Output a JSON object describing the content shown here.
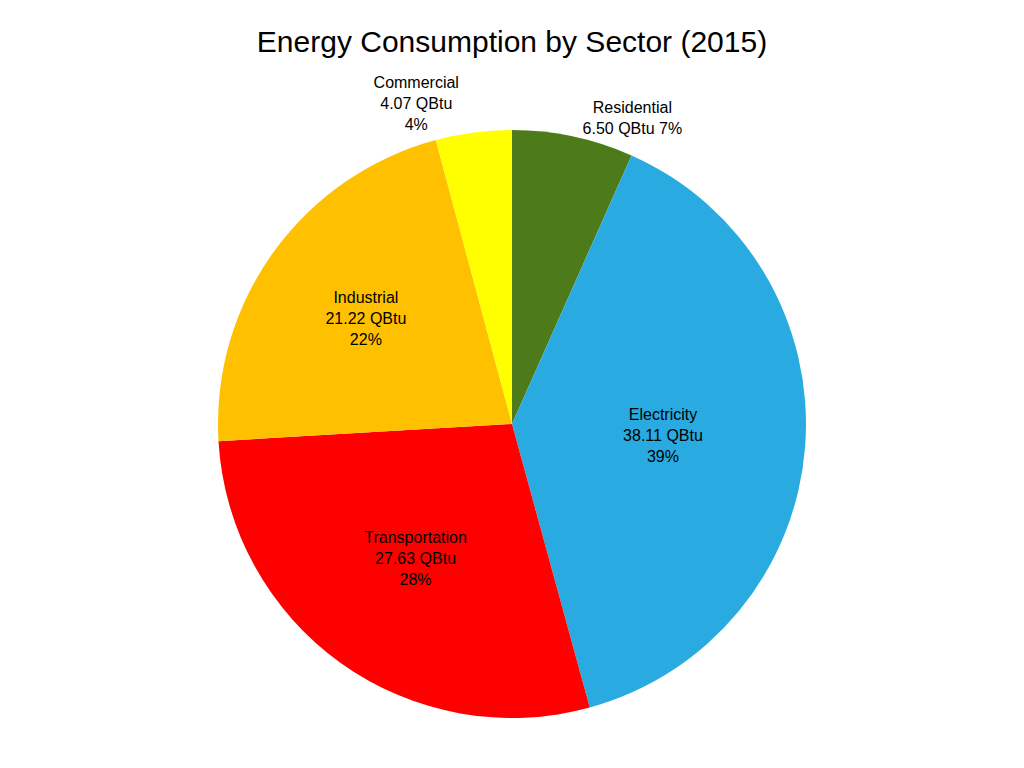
{
  "chart_data": {
    "type": "pie",
    "title": "Energy Consumption by Sector (2015)",
    "categories": [
      "Residential",
      "Electricity",
      "Transportation",
      "Industrial",
      "Commercial"
    ],
    "values": [
      6.5,
      38.11,
      27.63,
      21.22,
      4.07
    ],
    "value_labels": [
      "6.50 QBtu 7%",
      "38.11 QBtu\n39%",
      "27.63 QBtu\n28%",
      "21.22 QBtu\n22%",
      "4.07 QBtu\n4%"
    ],
    "colors": [
      "#4E7B1A",
      "#29ABE2",
      "#FF0000",
      "#FFC000",
      "#FFFF00"
    ]
  }
}
